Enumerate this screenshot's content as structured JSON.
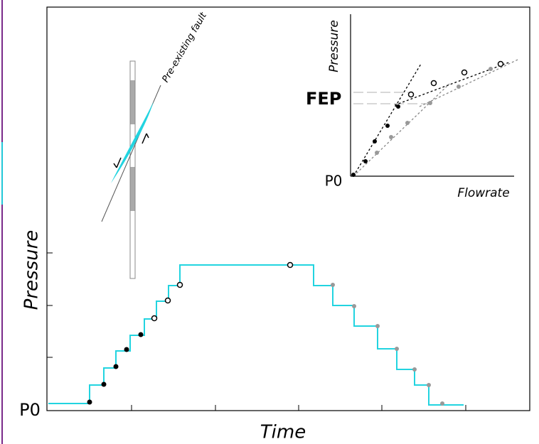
{
  "main": {
    "y_label": "Pressure",
    "x_label": "Time",
    "origin_label": "P0"
  },
  "fault_label": "Pre-existing fault",
  "inset": {
    "y_label": "Pressure",
    "x_label": "Flowrate",
    "fep_label": "FEP",
    "origin_label": "P0"
  }
}
